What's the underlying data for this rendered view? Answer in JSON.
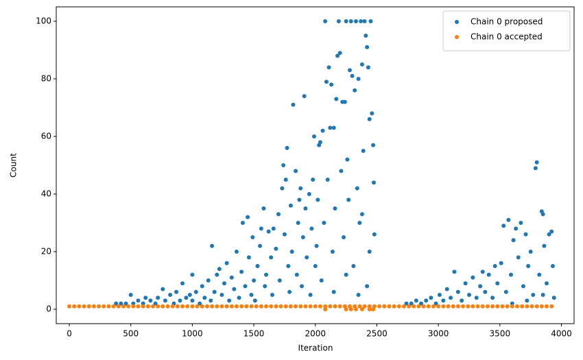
{
  "chart_data": {
    "type": "scatter",
    "xlabel": "Iteration",
    "ylabel": "Count",
    "xlim": [
      -106,
      4103
    ],
    "ylim": [
      -5,
      105
    ],
    "xticks": [
      0,
      500,
      1000,
      1500,
      2000,
      2500,
      3000,
      3500,
      4000
    ],
    "yticks": [
      0,
      20,
      40,
      60,
      80,
      100
    ],
    "legend": "upper right",
    "series": [
      {
        "name": "Chain 0 proposed",
        "color": "#1f77b4",
        "x": [
          380,
          420,
          460,
          500,
          520,
          560,
          600,
          620,
          660,
          700,
          720,
          760,
          780,
          820,
          850,
          870,
          900,
          920,
          950,
          980,
          1000,
          1000,
          1030,
          1060,
          1080,
          1100,
          1130,
          1150,
          1160,
          1180,
          1200,
          1220,
          1240,
          1260,
          1280,
          1300,
          1320,
          1340,
          1360,
          1380,
          1400,
          1410,
          1430,
          1450,
          1460,
          1480,
          1490,
          1500,
          1510,
          1530,
          1550,
          1560,
          1580,
          1590,
          1600,
          1620,
          1640,
          1650,
          1660,
          1680,
          1700,
          1710,
          1730,
          1740,
          1750,
          1760,
          1770,
          1780,
          1790,
          1800,
          1810,
          1820,
          1840,
          1850,
          1860,
          1870,
          1880,
          1890,
          1900,
          1910,
          1920,
          1930,
          1950,
          1960,
          1970,
          1980,
          1990,
          2000,
          2010,
          2020,
          2030,
          2040,
          2050,
          2060,
          2070,
          2080,
          2090,
          2100,
          2110,
          2120,
          2130,
          2140,
          2150,
          2160,
          2170,
          2180,
          2190,
          2200,
          2210,
          2220,
          2230,
          2240,
          2250,
          2260,
          2270,
          2280,
          2290,
          2300,
          2310,
          2320,
          2330,
          2340,
          2350,
          2360,
          2370,
          2380,
          2390,
          2400,
          2410,
          2420,
          2430,
          2440,
          2450,
          2460,
          2470,
          2475,
          2480,
          2420,
          2350,
          2250,
          2150,
          2440,
          2380,
          2740,
          2780,
          2820,
          2860,
          2900,
          2940,
          2980,
          3010,
          3040,
          3070,
          3100,
          3130,
          3160,
          3190,
          3220,
          3250,
          3280,
          3310,
          3340,
          3360,
          3380,
          3410,
          3440,
          3460,
          3480,
          3510,
          3530,
          3550,
          3570,
          3590,
          3610,
          3630,
          3650,
          3670,
          3690,
          3710,
          3730,
          3750,
          3770,
          3790,
          3800,
          3820,
          3840,
          3850,
          3860,
          3880,
          3900,
          3920,
          3930,
          3940,
          3720,
          3600,
          3850
        ],
        "values": [
          2,
          2,
          2,
          5,
          2,
          3,
          2,
          4,
          3,
          2,
          4,
          7,
          3,
          5,
          2,
          6,
          3,
          9,
          4,
          5,
          12,
          3,
          6,
          2,
          8,
          4,
          10,
          3,
          22,
          6,
          12,
          14,
          5,
          9,
          16,
          3,
          11,
          7,
          20,
          4,
          13,
          30,
          8,
          32,
          18,
          5,
          25,
          10,
          3,
          15,
          22,
          28,
          35,
          8,
          12,
          27,
          18,
          5,
          28,
          21,
          33,
          10,
          42,
          50,
          26,
          45,
          56,
          15,
          6,
          36,
          20,
          71,
          48,
          12,
          30,
          38,
          42,
          8,
          25,
          74,
          35,
          18,
          40,
          5,
          28,
          45,
          60,
          15,
          22,
          38,
          57,
          58,
          10,
          62,
          30,
          100,
          79,
          45,
          84,
          63,
          78,
          20,
          63,
          35,
          73,
          88,
          100,
          89,
          48,
          72,
          25,
          72,
          100,
          52,
          38,
          83,
          100,
          81,
          15,
          76,
          100,
          42,
          80,
          30,
          100,
          85,
          55,
          100,
          95,
          91,
          84,
          66,
          100,
          68,
          57,
          44,
          26,
          8,
          5,
          12,
          6,
          20,
          33,
          2,
          2,
          3,
          2,
          3,
          4,
          2,
          5,
          3,
          7,
          4,
          13,
          6,
          3,
          9,
          5,
          11,
          4,
          8,
          13,
          6,
          12,
          4,
          15,
          9,
          16,
          29,
          6,
          31,
          12,
          24,
          28,
          18,
          30,
          8,
          26,
          15,
          20,
          5,
          49,
          51,
          12,
          34,
          33,
          22,
          9,
          26,
          27,
          15,
          4,
          3,
          2,
          5
        ]
      },
      {
        "name": "Chain 0 accepted",
        "color": "#ff7f0e",
        "x": [
          0,
          40,
          80,
          120,
          160,
          200,
          240,
          280,
          320,
          360,
          400,
          440,
          480,
          520,
          560,
          600,
          640,
          680,
          720,
          760,
          800,
          840,
          880,
          920,
          960,
          1000,
          1040,
          1080,
          1120,
          1160,
          1200,
          1240,
          1280,
          1320,
          1360,
          1400,
          1440,
          1480,
          1520,
          1560,
          1600,
          1640,
          1680,
          1720,
          1760,
          1800,
          1840,
          1880,
          1920,
          1960,
          2000,
          2040,
          2080,
          2120,
          2160,
          2200,
          2240,
          2280,
          2320,
          2360,
          2400,
          2440,
          2480,
          2520,
          2560,
          2600,
          2640,
          2680,
          2720,
          2760,
          2800,
          2840,
          2880,
          2920,
          2960,
          3000,
          3040,
          3080,
          3120,
          3160,
          3200,
          3240,
          3280,
          3320,
          3360,
          3400,
          3440,
          3480,
          3520,
          3560,
          3600,
          3640,
          3680,
          3720,
          3760,
          3800,
          3840,
          3880,
          3920,
          2080,
          2250,
          2290,
          2330,
          2380,
          2440,
          2470
        ],
        "values": [
          1,
          1,
          1,
          1,
          1,
          1,
          1,
          1,
          1,
          1,
          1,
          1,
          1,
          1,
          1,
          1,
          1,
          1,
          1,
          1,
          1,
          1,
          1,
          1,
          1,
          1,
          1,
          1,
          1,
          1,
          1,
          1,
          1,
          1,
          1,
          1,
          1,
          1,
          1,
          1,
          1,
          1,
          1,
          1,
          1,
          1,
          1,
          1,
          1,
          1,
          1,
          1,
          1,
          1,
          1,
          1,
          1,
          1,
          1,
          1,
          1,
          1,
          1,
          1,
          1,
          1,
          1,
          1,
          1,
          1,
          1,
          1,
          1,
          1,
          1,
          1,
          1,
          1,
          1,
          1,
          1,
          1,
          1,
          1,
          1,
          1,
          1,
          1,
          1,
          1,
          1,
          1,
          1,
          1,
          1,
          1,
          1,
          1,
          1,
          0,
          0,
          0,
          0,
          0,
          0,
          0
        ]
      }
    ]
  }
}
